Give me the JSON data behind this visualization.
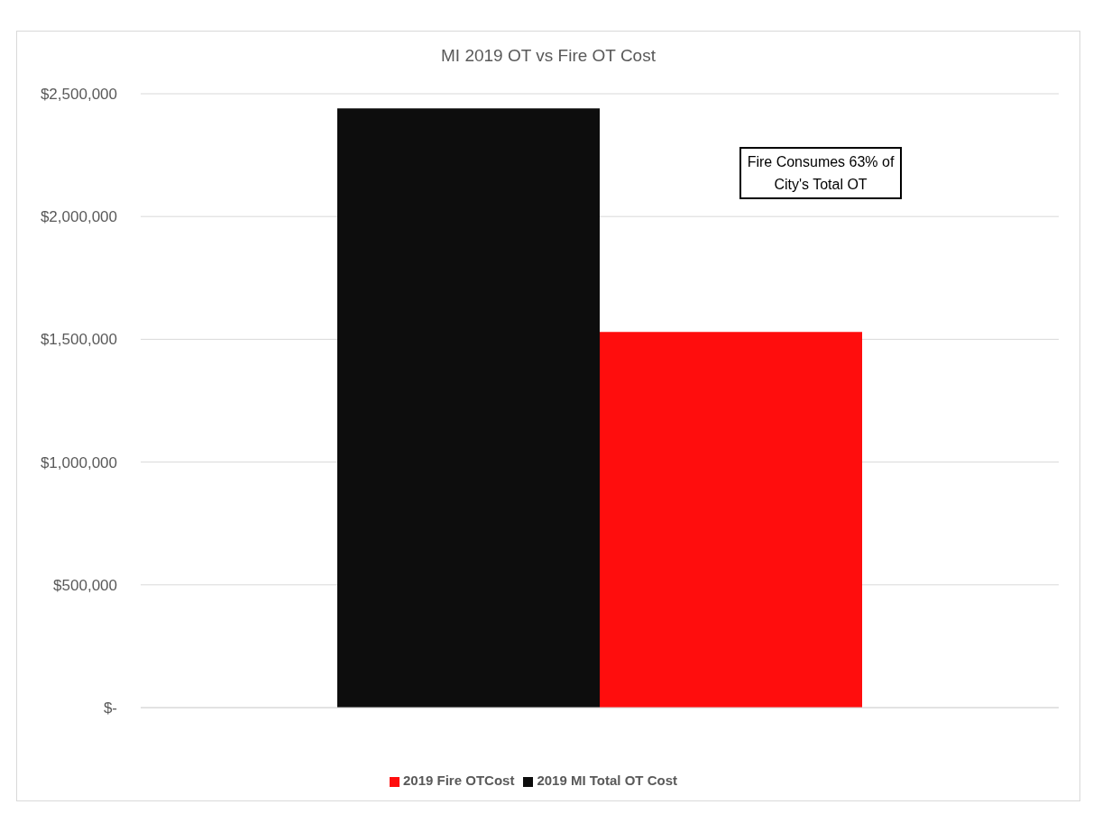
{
  "chart_data": {
    "type": "bar",
    "title": "MI 2019 OT vs Fire OT Cost",
    "categories": [
      null
    ],
    "series": [
      {
        "name": "2019 MI Total OT Cost",
        "color": "#0d0d0d",
        "values": [
          2440000
        ]
      },
      {
        "name": "2019 Fire OTCost",
        "color": "#ff0d0d",
        "values": [
          1530000
        ]
      }
    ],
    "ylim": [
      0,
      2500000
    ],
    "yticks": [
      {
        "value": 0,
        "label": "$-"
      },
      {
        "value": 500000,
        "label": "$500,000"
      },
      {
        "value": 1000000,
        "label": "$1,000,000"
      },
      {
        "value": 1500000,
        "label": "$1,500,000"
      },
      {
        "value": 2000000,
        "label": "$2,000,000"
      },
      {
        "value": 2500000,
        "label": "$2,500,000"
      }
    ],
    "grid": "y",
    "legend": "bottom",
    "annotations": [
      "Fire Consumes 63% of City's Total OT"
    ]
  }
}
